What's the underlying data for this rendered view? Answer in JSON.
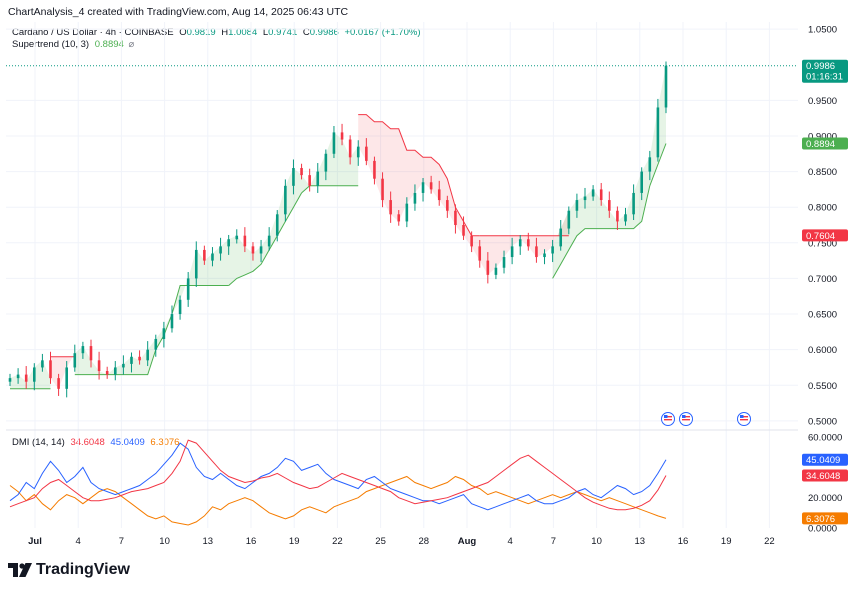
{
  "header": {
    "text": "ChartAnalysis_4 created with TradingView.com, Aug 14, 2025 06:43 UTC"
  },
  "legend": {
    "symbol": "Cardano / US Dollar · 4h · COINBASE",
    "open_label": "O",
    "open": "0.9819",
    "high_label": "H",
    "high": "1.0084",
    "low_label": "L",
    "low": "0.9741",
    "close_label": "C",
    "close": "0.9986",
    "change": "+0.0167 (+1.70%)",
    "supertrend_label": "Supertrend (10, 3)",
    "supertrend_value": "0.8894",
    "supertrend_icon": "eye-off-icon",
    "dmi_label": "DMI (14, 14)",
    "dmi_values": [
      "34.6048",
      "45.0409",
      "6.3076"
    ]
  },
  "colors": {
    "up": "#089981",
    "down": "#f23645",
    "st_up": "#4caf50",
    "st_down": "#f23645",
    "adx": "#f23645",
    "plus_di": "#2962ff",
    "minus_di": "#f57c00",
    "grid": "#f0f3fa",
    "axis_text": "#131722"
  },
  "price_axis": {
    "ticks": [
      "1.0500",
      "0.9500",
      "0.9000",
      "0.8500",
      "0.8000",
      "0.7500",
      "0.7000",
      "0.6500",
      "0.6000",
      "0.5500",
      "0.5000"
    ],
    "last_price_label": "0.9986",
    "countdown_label": "01:16:31",
    "supertrend_label": "0.8894",
    "resistance_label": "0.7604"
  },
  "dmi_axis": {
    "ticks": [
      "60.0000",
      "20.0000",
      "0.0000"
    ],
    "plus_di_label": "45.0409",
    "adx_label": "34.6048",
    "minus_di_label": "6.3076"
  },
  "time_axis": {
    "ticks": [
      "Jul",
      "4",
      "7",
      "10",
      "13",
      "16",
      "19",
      "22",
      "25",
      "28",
      "Aug",
      "4",
      "7",
      "10",
      "13",
      "16",
      "19",
      "22"
    ]
  },
  "chart_data": {
    "type": "candlestick",
    "title": "Cardano / US Dollar · 4h · COINBASE",
    "ylim": [
      0.49,
      1.06
    ],
    "last_price": 0.9986,
    "price_series": [
      [
        0,
        0.56
      ],
      [
        1,
        0.565
      ],
      [
        2,
        0.555
      ],
      [
        3,
        0.575
      ],
      [
        4,
        0.585
      ],
      [
        5,
        0.56
      ],
      [
        6,
        0.545
      ],
      [
        7,
        0.575
      ],
      [
        8,
        0.595
      ],
      [
        9,
        0.605
      ],
      [
        10,
        0.585
      ],
      [
        11,
        0.57
      ],
      [
        12,
        0.565
      ],
      [
        13,
        0.575
      ],
      [
        14,
        0.58
      ],
      [
        15,
        0.59
      ],
      [
        16,
        0.585
      ],
      [
        17,
        0.6
      ],
      [
        18,
        0.615
      ],
      [
        19,
        0.63
      ],
      [
        20,
        0.65
      ],
      [
        21,
        0.67
      ],
      [
        22,
        0.7
      ],
      [
        23,
        0.74
      ],
      [
        24,
        0.725
      ],
      [
        25,
        0.735
      ],
      [
        26,
        0.745
      ],
      [
        27,
        0.755
      ],
      [
        28,
        0.76
      ],
      [
        29,
        0.745
      ],
      [
        30,
        0.735
      ],
      [
        31,
        0.745
      ],
      [
        32,
        0.76
      ],
      [
        33,
        0.79
      ],
      [
        34,
        0.83
      ],
      [
        35,
        0.855
      ],
      [
        36,
        0.845
      ],
      [
        37,
        0.83
      ],
      [
        38,
        0.85
      ],
      [
        39,
        0.875
      ],
      [
        40,
        0.905
      ],
      [
        41,
        0.895
      ],
      [
        42,
        0.87
      ],
      [
        43,
        0.885
      ],
      [
        44,
        0.865
      ],
      [
        45,
        0.84
      ],
      [
        46,
        0.81
      ],
      [
        47,
        0.79
      ],
      [
        48,
        0.78
      ],
      [
        49,
        0.805
      ],
      [
        50,
        0.82
      ],
      [
        51,
        0.835
      ],
      [
        52,
        0.825
      ],
      [
        53,
        0.81
      ],
      [
        54,
        0.795
      ],
      [
        55,
        0.775
      ],
      [
        56,
        0.76
      ],
      [
        57,
        0.745
      ],
      [
        58,
        0.725
      ],
      [
        59,
        0.705
      ],
      [
        60,
        0.715
      ],
      [
        61,
        0.73
      ],
      [
        62,
        0.745
      ],
      [
        63,
        0.755
      ],
      [
        64,
        0.745
      ],
      [
        65,
        0.73
      ],
      [
        66,
        0.735
      ],
      [
        67,
        0.745
      ],
      [
        68,
        0.77
      ],
      [
        69,
        0.795
      ],
      [
        70,
        0.81
      ],
      [
        71,
        0.815
      ],
      [
        72,
        0.825
      ],
      [
        73,
        0.81
      ],
      [
        74,
        0.795
      ],
      [
        75,
        0.78
      ],
      [
        76,
        0.79
      ],
      [
        77,
        0.82
      ],
      [
        78,
        0.85
      ],
      [
        79,
        0.87
      ],
      [
        80,
        0.94
      ],
      [
        81,
        0.9986
      ]
    ],
    "supertrend": [
      {
        "start": 0,
        "end": 5,
        "dir": "up",
        "values": [
          0.545,
          0.545,
          0.545,
          0.545,
          0.545,
          0.545
        ]
      },
      {
        "start": 5,
        "end": 8,
        "dir": "down",
        "values": [
          0.59,
          0.59,
          0.59,
          0.59
        ]
      },
      {
        "start": 8,
        "end": 27,
        "dir": "up",
        "values": [
          0.565,
          0.565,
          0.565,
          0.565,
          0.565,
          0.565,
          0.565,
          0.565,
          0.565,
          0.565,
          0.6,
          0.62,
          0.65,
          0.69,
          0.69,
          0.69,
          0.69,
          0.69,
          0.69,
          0.69
        ]
      },
      {
        "start": 27,
        "end": 36,
        "dir": "up",
        "values": [
          0.69,
          0.7,
          0.705,
          0.71,
          0.72,
          0.74,
          0.76,
          0.78,
          0.8,
          0.82
        ]
      },
      {
        "start": 36,
        "end": 43,
        "dir": "up",
        "values": [
          0.82,
          0.83,
          0.83,
          0.83,
          0.83,
          0.83,
          0.83,
          0.83
        ]
      },
      {
        "start": 43,
        "end": 58,
        "dir": "down",
        "values": [
          0.93,
          0.93,
          0.92,
          0.92,
          0.91,
          0.91,
          0.88,
          0.88,
          0.87,
          0.87,
          0.86,
          0.84,
          0.8,
          0.78,
          0.76,
          0.76
        ]
      },
      {
        "start": 58,
        "end": 69,
        "dir": "down",
        "values": [
          0.76,
          0.76,
          0.76,
          0.76,
          0.76,
          0.76,
          0.76,
          0.76,
          0.76,
          0.76,
          0.76,
          0.76
        ]
      },
      {
        "start": 67,
        "end": 79,
        "dir": "up",
        "values": [
          0.7,
          0.72,
          0.74,
          0.76,
          0.77,
          0.77,
          0.77,
          0.77,
          0.77,
          0.77,
          0.77,
          0.78,
          0.83
        ]
      },
      {
        "start": 79,
        "end": 81,
        "dir": "up",
        "values": [
          0.83,
          0.86,
          0.8894
        ]
      }
    ],
    "dmi": {
      "ylim": [
        0,
        62
      ],
      "adx": [
        14,
        16,
        18,
        20,
        26,
        30,
        32,
        28,
        24,
        20,
        18,
        18,
        19,
        20,
        22,
        24,
        25,
        26,
        28,
        30,
        36,
        44,
        58,
        56,
        50,
        44,
        38,
        34,
        32,
        30,
        31,
        33,
        34,
        36,
        33,
        30,
        28,
        26,
        27,
        30,
        33,
        36,
        34,
        32,
        30,
        28,
        26,
        24,
        20,
        18,
        16,
        17,
        18,
        19,
        20,
        22,
        24,
        26,
        28,
        30,
        34,
        38,
        42,
        46,
        48,
        44,
        40,
        36,
        32,
        28,
        24,
        20,
        17,
        15,
        13,
        12,
        12,
        13,
        15,
        18,
        25,
        34.6
      ],
      "plus_di": [
        18,
        22,
        30,
        26,
        36,
        44,
        38,
        30,
        34,
        40,
        30,
        26,
        24,
        22,
        24,
        26,
        28,
        32,
        36,
        42,
        48,
        56,
        52,
        40,
        34,
        32,
        36,
        32,
        28,
        26,
        30,
        34,
        36,
        40,
        46,
        44,
        38,
        40,
        42,
        36,
        32,
        30,
        28,
        26,
        32,
        34,
        30,
        26,
        24,
        22,
        20,
        18,
        18,
        16,
        18,
        20,
        22,
        16,
        14,
        12,
        14,
        16,
        18,
        20,
        22,
        18,
        16,
        16,
        18,
        20,
        24,
        26,
        22,
        20,
        24,
        28,
        26,
        22,
        24,
        28,
        36,
        45.0
      ],
      "minus_di": [
        28,
        24,
        18,
        22,
        16,
        12,
        18,
        22,
        20,
        16,
        20,
        24,
        26,
        24,
        20,
        16,
        12,
        8,
        6,
        8,
        4,
        3,
        2,
        4,
        8,
        14,
        12,
        16,
        18,
        20,
        18,
        14,
        10,
        8,
        6,
        8,
        12,
        14,
        12,
        10,
        14,
        16,
        18,
        20,
        24,
        26,
        28,
        30,
        32,
        34,
        30,
        28,
        26,
        28,
        30,
        34,
        32,
        28,
        26,
        22,
        24,
        22,
        20,
        18,
        16,
        18,
        20,
        22,
        20,
        22,
        24,
        22,
        20,
        18,
        20,
        18,
        16,
        14,
        12,
        10,
        8,
        6.3
      ]
    },
    "events_label": "US economic events markers"
  },
  "brand": {
    "name": "TradingView"
  }
}
